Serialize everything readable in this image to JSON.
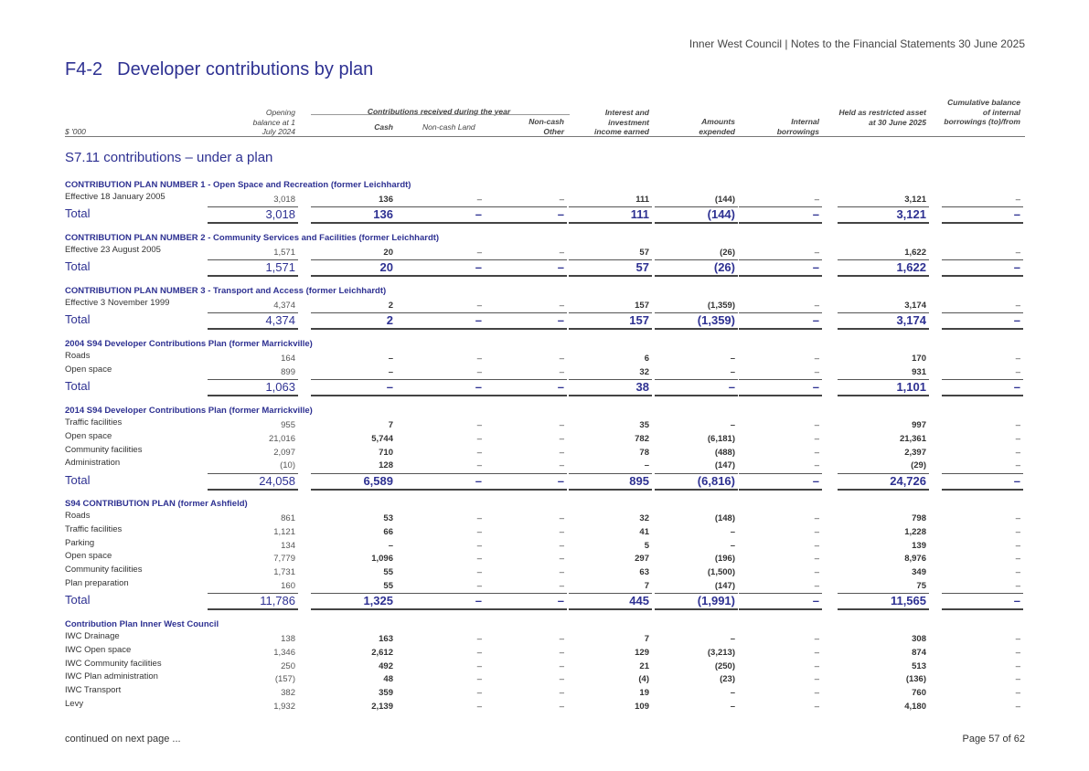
{
  "header": {
    "doc_title": "Inner West Council | Notes to the Financial Statements 30 June 2025"
  },
  "title": {
    "number": "F4-2",
    "text": "Developer contributions by plan"
  },
  "columns": {
    "units": "$ '000",
    "opening": "Opening balance at 1 July 2024",
    "group": "Contributions received during the year",
    "cash": "Cash",
    "noncash_land": "Non-cash Land",
    "noncash_other": "Non-cash Other",
    "interest": "Interest and investment income earned",
    "expended": "Amounts expended",
    "internal": "Internal borrowings",
    "held": "Held as restricted asset at 30 June 2025",
    "cumulative": "Cumulative balance of internal borrowings (to)/from"
  },
  "section_title": "S7.11 contributions – under a plan",
  "plans": [
    {
      "title": "CONTRIBUTION PLAN NUMBER 1 - Open Space and Recreation (former Leichhardt)",
      "rows": [
        {
          "label": "Effective 18 January 2005",
          "values": [
            "3,018",
            "136",
            "–",
            "–",
            "111",
            "(144)",
            "–",
            "3,121",
            "–"
          ]
        }
      ],
      "total": {
        "label": "Total",
        "values": [
          "3,018",
          "136",
          "–",
          "–",
          "111",
          "(144)",
          "–",
          "3,121",
          "–"
        ]
      }
    },
    {
      "title": "CONTRIBUTION PLAN NUMBER 2 - Community Services and Facilities (former Leichhardt)",
      "rows": [
        {
          "label": "Effective 23 August 2005",
          "values": [
            "1,571",
            "20",
            "–",
            "–",
            "57",
            "(26)",
            "–",
            "1,622",
            "–"
          ]
        }
      ],
      "total": {
        "label": "Total",
        "values": [
          "1,571",
          "20",
          "–",
          "–",
          "57",
          "(26)",
          "–",
          "1,622",
          "–"
        ]
      }
    },
    {
      "title": "CONTRIBUTION PLAN NUMBER 3 - Transport and Access (former Leichhardt)",
      "rows": [
        {
          "label": "Effective 3 November 1999",
          "values": [
            "4,374",
            "2",
            "–",
            "–",
            "157",
            "(1,359)",
            "–",
            "3,174",
            "–"
          ]
        }
      ],
      "total": {
        "label": "Total",
        "values": [
          "4,374",
          "2",
          "–",
          "–",
          "157",
          "(1,359)",
          "–",
          "3,174",
          "–"
        ]
      }
    },
    {
      "title": "2004 S94 Developer Contributions Plan (former Marrickville)",
      "rows": [
        {
          "label": "Roads",
          "values": [
            "164",
            "–",
            "–",
            "–",
            "6",
            "–",
            "–",
            "170",
            "–"
          ]
        },
        {
          "label": "Open space",
          "values": [
            "899",
            "–",
            "–",
            "–",
            "32",
            "–",
            "–",
            "931",
            "–"
          ]
        }
      ],
      "total": {
        "label": "Total",
        "values": [
          "1,063",
          "–",
          "–",
          "–",
          "38",
          "–",
          "–",
          "1,101",
          "–"
        ]
      }
    },
    {
      "title": "2014 S94 Developer Contributions Plan (former Marrickville)",
      "rows": [
        {
          "label": "Traffic facilities",
          "values": [
            "955",
            "7",
            "–",
            "–",
            "35",
            "–",
            "–",
            "997",
            "–"
          ]
        },
        {
          "label": "Open space",
          "values": [
            "21,016",
            "5,744",
            "–",
            "–",
            "782",
            "(6,181)",
            "–",
            "21,361",
            "–"
          ]
        },
        {
          "label": "Community facilities",
          "values": [
            "2,097",
            "710",
            "–",
            "–",
            "78",
            "(488)",
            "–",
            "2,397",
            "–"
          ]
        },
        {
          "label": "Administration",
          "values": [
            "(10)",
            "128",
            "–",
            "–",
            "–",
            "(147)",
            "–",
            "(29)",
            "–"
          ]
        }
      ],
      "total": {
        "label": "Total",
        "values": [
          "24,058",
          "6,589",
          "–",
          "–",
          "895",
          "(6,816)",
          "–",
          "24,726",
          "–"
        ]
      }
    },
    {
      "title": "S94 CONTRIBUTION PLAN (former Ashfield)",
      "rows": [
        {
          "label": "Roads",
          "values": [
            "861",
            "53",
            "–",
            "–",
            "32",
            "(148)",
            "–",
            "798",
            "–"
          ]
        },
        {
          "label": "Traffic facilities",
          "values": [
            "1,121",
            "66",
            "–",
            "–",
            "41",
            "–",
            "–",
            "1,228",
            "–"
          ]
        },
        {
          "label": "Parking",
          "values": [
            "134",
            "–",
            "–",
            "–",
            "5",
            "–",
            "–",
            "139",
            "–"
          ]
        },
        {
          "label": "Open space",
          "values": [
            "7,779",
            "1,096",
            "–",
            "–",
            "297",
            "(196)",
            "–",
            "8,976",
            "–"
          ]
        },
        {
          "label": "Community facilities",
          "values": [
            "1,731",
            "55",
            "–",
            "–",
            "63",
            "(1,500)",
            "–",
            "349",
            "–"
          ]
        },
        {
          "label": "Plan preparation",
          "values": [
            "160",
            "55",
            "–",
            "–",
            "7",
            "(147)",
            "–",
            "75",
            "–"
          ]
        }
      ],
      "total": {
        "label": "Total",
        "values": [
          "11,786",
          "1,325",
          "–",
          "–",
          "445",
          "(1,991)",
          "–",
          "11,565",
          "–"
        ]
      }
    },
    {
      "title": "Contribution Plan Inner West Council",
      "rows": [
        {
          "label": "IWC Drainage",
          "values": [
            "138",
            "163",
            "–",
            "–",
            "7",
            "–",
            "–",
            "308",
            "–"
          ]
        },
        {
          "label": "IWC Open space",
          "values": [
            "1,346",
            "2,612",
            "–",
            "–",
            "129",
            "(3,213)",
            "–",
            "874",
            "–"
          ]
        },
        {
          "label": "IWC Community facilities",
          "values": [
            "250",
            "492",
            "–",
            "–",
            "21",
            "(250)",
            "–",
            "513",
            "–"
          ]
        },
        {
          "label": "IWC Plan administration",
          "values": [
            "(157)",
            "48",
            "–",
            "–",
            "(4)",
            "(23)",
            "–",
            "(136)",
            "–"
          ]
        },
        {
          "label": "IWC Transport",
          "values": [
            "382",
            "359",
            "–",
            "–",
            "19",
            "–",
            "–",
            "760",
            "–"
          ]
        },
        {
          "label": "Levy",
          "values": [
            "1,932",
            "2,139",
            "–",
            "–",
            "109",
            "–",
            "–",
            "4,180",
            "–"
          ]
        }
      ]
    }
  ],
  "footer": {
    "continued": "continued on next page ...",
    "page": "Page 57 of 62"
  }
}
